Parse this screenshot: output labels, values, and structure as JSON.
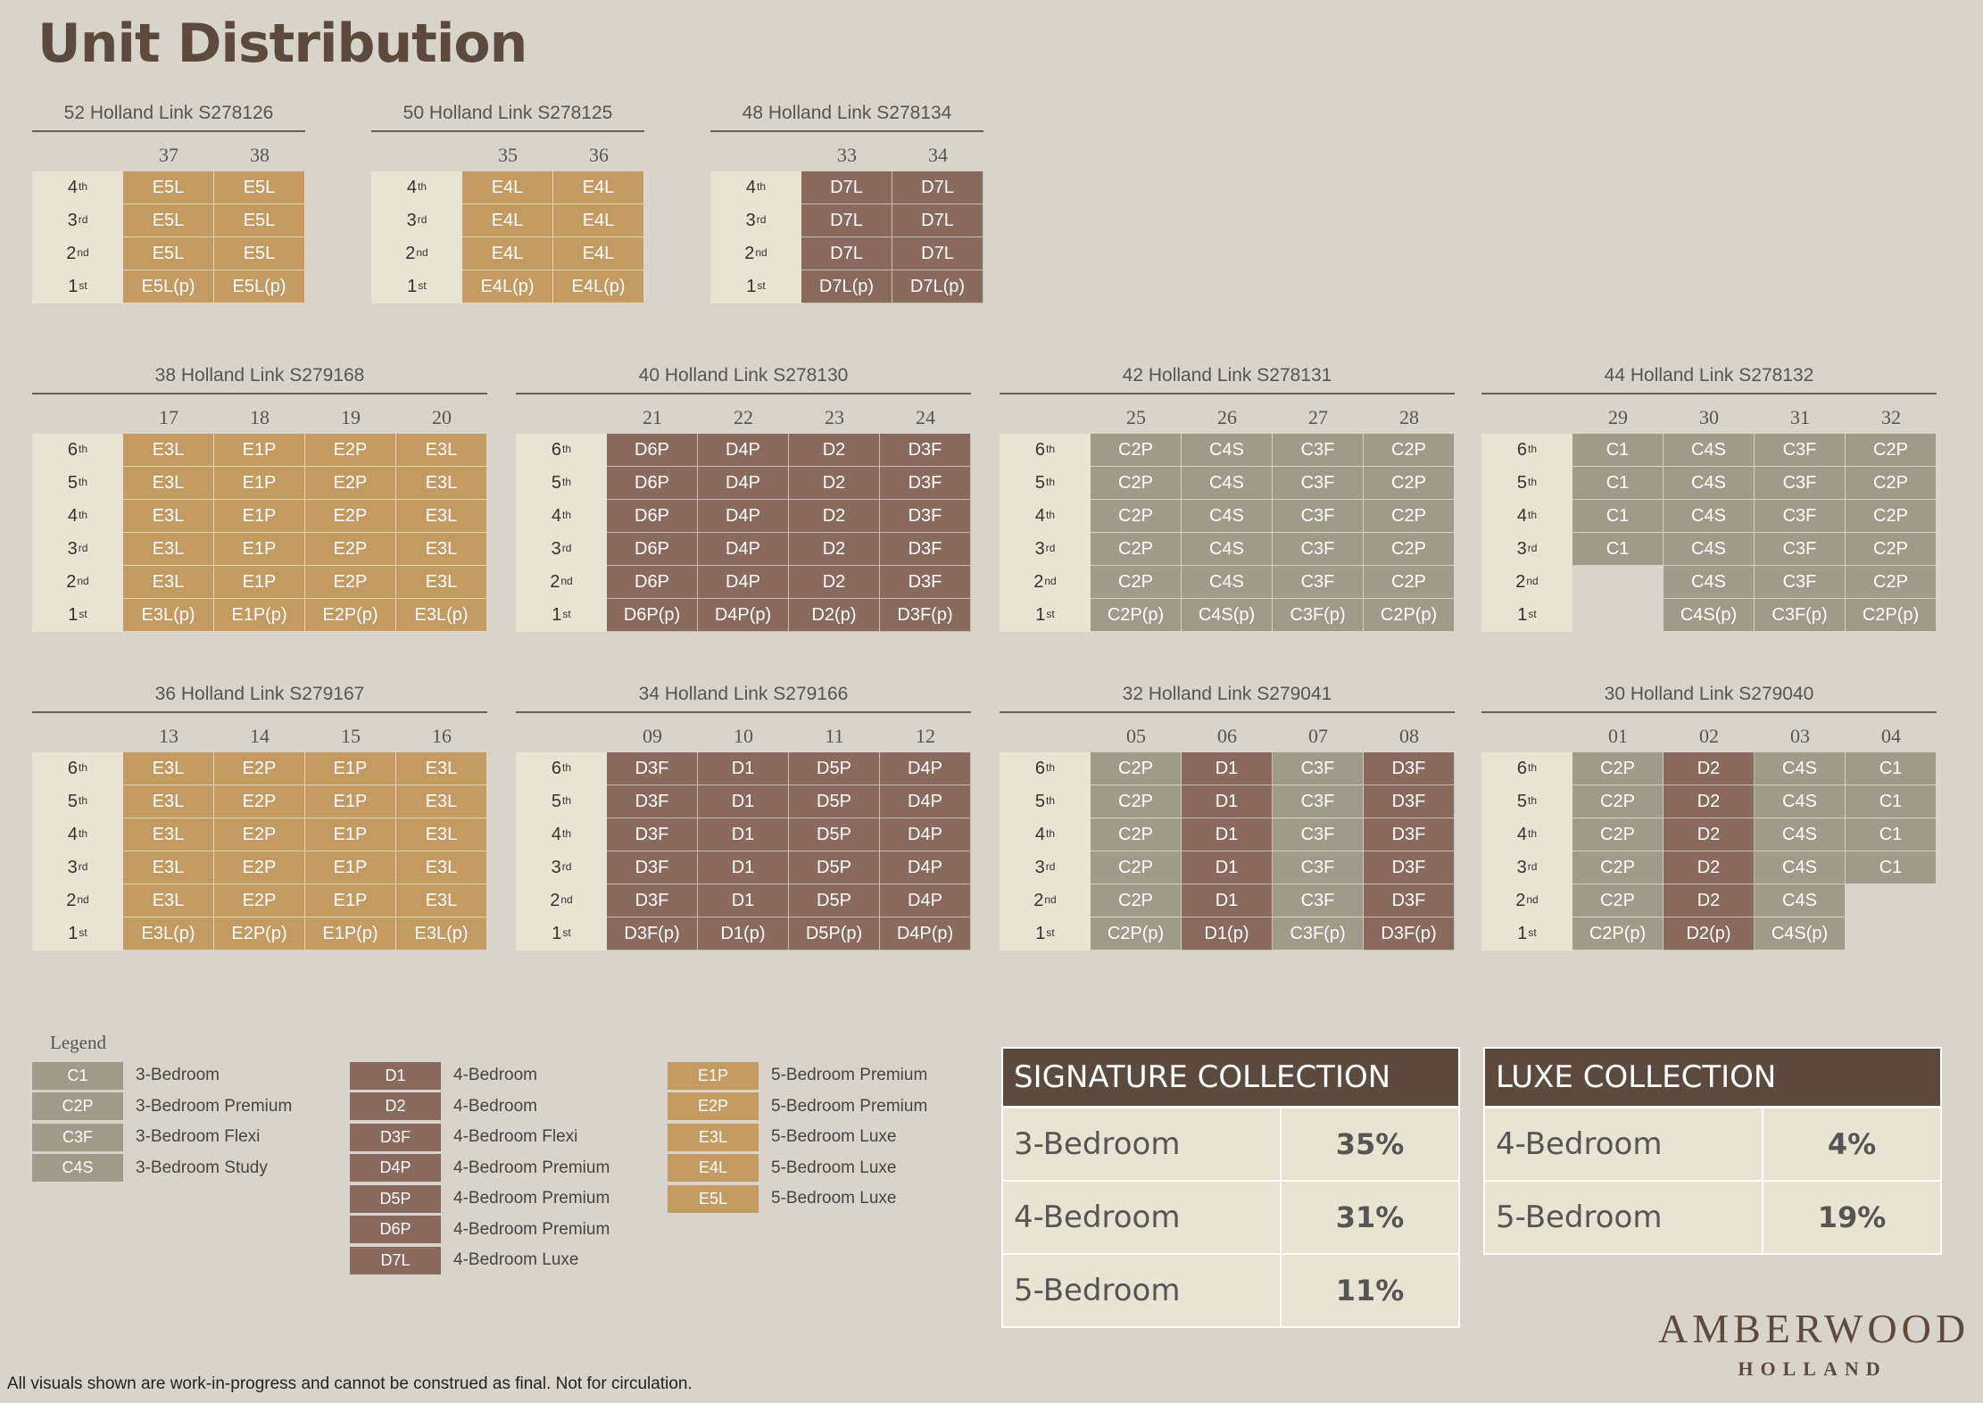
{
  "title": "Unit Distribution",
  "colors": {
    "C": "#a09a88",
    "D": "#8a6a5c",
    "E": "#c49a63"
  },
  "blocks": [
    {
      "id": "52",
      "title": "52 Holland Link S278126",
      "cols": [
        "37",
        "38"
      ],
      "rows": [
        {
          "floor": "4",
          "sup": "th",
          "units": [
            "E5L",
            "E5L"
          ]
        },
        {
          "floor": "3",
          "sup": "rd",
          "units": [
            "E5L",
            "E5L"
          ]
        },
        {
          "floor": "2",
          "sup": "nd",
          "units": [
            "E5L",
            "E5L"
          ]
        },
        {
          "floor": "1",
          "sup": "st",
          "units": [
            "E5L(p)",
            "E5L(p)"
          ]
        }
      ]
    },
    {
      "id": "50",
      "title": "50 Holland Link S278125",
      "cols": [
        "35",
        "36"
      ],
      "rows": [
        {
          "floor": "4",
          "sup": "th",
          "units": [
            "E4L",
            "E4L"
          ]
        },
        {
          "floor": "3",
          "sup": "rd",
          "units": [
            "E4L",
            "E4L"
          ]
        },
        {
          "floor": "2",
          "sup": "nd",
          "units": [
            "E4L",
            "E4L"
          ]
        },
        {
          "floor": "1",
          "sup": "st",
          "units": [
            "E4L(p)",
            "E4L(p)"
          ]
        }
      ]
    },
    {
      "id": "48",
      "title": "48 Holland Link S278134",
      "cols": [
        "33",
        "34"
      ],
      "rows": [
        {
          "floor": "4",
          "sup": "th",
          "units": [
            "D7L",
            "D7L"
          ]
        },
        {
          "floor": "3",
          "sup": "rd",
          "units": [
            "D7L",
            "D7L"
          ]
        },
        {
          "floor": "2",
          "sup": "nd",
          "units": [
            "D7L",
            "D7L"
          ]
        },
        {
          "floor": "1",
          "sup": "st",
          "units": [
            "D7L(p)",
            "D7L(p)"
          ]
        }
      ]
    },
    {
      "id": "38",
      "title": "38 Holland Link S279168",
      "cols": [
        "17",
        "18",
        "19",
        "20"
      ],
      "rows": [
        {
          "floor": "6",
          "sup": "th",
          "units": [
            "E3L",
            "E1P",
            "E2P",
            "E3L"
          ]
        },
        {
          "floor": "5",
          "sup": "th",
          "units": [
            "E3L",
            "E1P",
            "E2P",
            "E3L"
          ]
        },
        {
          "floor": "4",
          "sup": "th",
          "units": [
            "E3L",
            "E1P",
            "E2P",
            "E3L"
          ]
        },
        {
          "floor": "3",
          "sup": "rd",
          "units": [
            "E3L",
            "E1P",
            "E2P",
            "E3L"
          ]
        },
        {
          "floor": "2",
          "sup": "nd",
          "units": [
            "E3L",
            "E1P",
            "E2P",
            "E3L"
          ]
        },
        {
          "floor": "1",
          "sup": "st",
          "units": [
            "E3L(p)",
            "E1P(p)",
            "E2P(p)",
            "E3L(p)"
          ]
        }
      ]
    },
    {
      "id": "40",
      "title": "40 Holland Link S278130",
      "cols": [
        "21",
        "22",
        "23",
        "24"
      ],
      "rows": [
        {
          "floor": "6",
          "sup": "th",
          "units": [
            "D6P",
            "D4P",
            "D2",
            "D3F"
          ]
        },
        {
          "floor": "5",
          "sup": "th",
          "units": [
            "D6P",
            "D4P",
            "D2",
            "D3F"
          ]
        },
        {
          "floor": "4",
          "sup": "th",
          "units": [
            "D6P",
            "D4P",
            "D2",
            "D3F"
          ]
        },
        {
          "floor": "3",
          "sup": "rd",
          "units": [
            "D6P",
            "D4P",
            "D2",
            "D3F"
          ]
        },
        {
          "floor": "2",
          "sup": "nd",
          "units": [
            "D6P",
            "D4P",
            "D2",
            "D3F"
          ]
        },
        {
          "floor": "1",
          "sup": "st",
          "units": [
            "D6P(p)",
            "D4P(p)",
            "D2(p)",
            "D3F(p)"
          ]
        }
      ]
    },
    {
      "id": "42",
      "title": "42 Holland Link S278131",
      "cols": [
        "25",
        "26",
        "27",
        "28"
      ],
      "rows": [
        {
          "floor": "6",
          "sup": "th",
          "units": [
            "C2P",
            "C4S",
            "C3F",
            "C2P"
          ]
        },
        {
          "floor": "5",
          "sup": "th",
          "units": [
            "C2P",
            "C4S",
            "C3F",
            "C2P"
          ]
        },
        {
          "floor": "4",
          "sup": "th",
          "units": [
            "C2P",
            "C4S",
            "C3F",
            "C2P"
          ]
        },
        {
          "floor": "3",
          "sup": "rd",
          "units": [
            "C2P",
            "C4S",
            "C3F",
            "C2P"
          ]
        },
        {
          "floor": "2",
          "sup": "nd",
          "units": [
            "C2P",
            "C4S",
            "C3F",
            "C2P"
          ]
        },
        {
          "floor": "1",
          "sup": "st",
          "units": [
            "C2P(p)",
            "C4S(p)",
            "C3F(p)",
            "C2P(p)"
          ]
        }
      ]
    },
    {
      "id": "44",
      "title": "44 Holland Link S278132",
      "cols": [
        "29",
        "30",
        "31",
        "32"
      ],
      "rows": [
        {
          "floor": "6",
          "sup": "th",
          "units": [
            "C1",
            "C4S",
            "C3F",
            "C2P"
          ]
        },
        {
          "floor": "5",
          "sup": "th",
          "units": [
            "C1",
            "C4S",
            "C3F",
            "C2P"
          ]
        },
        {
          "floor": "4",
          "sup": "th",
          "units": [
            "C1",
            "C4S",
            "C3F",
            "C2P"
          ]
        },
        {
          "floor": "3",
          "sup": "rd",
          "units": [
            "C1",
            "C4S",
            "C3F",
            "C2P"
          ]
        },
        {
          "floor": "2",
          "sup": "nd",
          "units": [
            "",
            "C4S",
            "C3F",
            "C2P"
          ]
        },
        {
          "floor": "1",
          "sup": "st",
          "units": [
            "",
            "C4S(p)",
            "C3F(p)",
            "C2P(p)"
          ]
        }
      ]
    },
    {
      "id": "36",
      "title": "36 Holland Link S279167",
      "cols": [
        "13",
        "14",
        "15",
        "16"
      ],
      "rows": [
        {
          "floor": "6",
          "sup": "th",
          "units": [
            "E3L",
            "E2P",
            "E1P",
            "E3L"
          ]
        },
        {
          "floor": "5",
          "sup": "th",
          "units": [
            "E3L",
            "E2P",
            "E1P",
            "E3L"
          ]
        },
        {
          "floor": "4",
          "sup": "th",
          "units": [
            "E3L",
            "E2P",
            "E1P",
            "E3L"
          ]
        },
        {
          "floor": "3",
          "sup": "rd",
          "units": [
            "E3L",
            "E2P",
            "E1P",
            "E3L"
          ]
        },
        {
          "floor": "2",
          "sup": "nd",
          "units": [
            "E3L",
            "E2P",
            "E1P",
            "E3L"
          ]
        },
        {
          "floor": "1",
          "sup": "st",
          "units": [
            "E3L(p)",
            "E2P(p)",
            "E1P(p)",
            "E3L(p)"
          ]
        }
      ]
    },
    {
      "id": "34",
      "title": "34 Holland Link S279166",
      "cols": [
        "09",
        "10",
        "11",
        "12"
      ],
      "rows": [
        {
          "floor": "6",
          "sup": "th",
          "units": [
            "D3F",
            "D1",
            "D5P",
            "D4P"
          ]
        },
        {
          "floor": "5",
          "sup": "th",
          "units": [
            "D3F",
            "D1",
            "D5P",
            "D4P"
          ]
        },
        {
          "floor": "4",
          "sup": "th",
          "units": [
            "D3F",
            "D1",
            "D5P",
            "D4P"
          ]
        },
        {
          "floor": "3",
          "sup": "rd",
          "units": [
            "D3F",
            "D1",
            "D5P",
            "D4P"
          ]
        },
        {
          "floor": "2",
          "sup": "nd",
          "units": [
            "D3F",
            "D1",
            "D5P",
            "D4P"
          ]
        },
        {
          "floor": "1",
          "sup": "st",
          "units": [
            "D3F(p)",
            "D1(p)",
            "D5P(p)",
            "D4P(p)"
          ]
        }
      ]
    },
    {
      "id": "32",
      "title": "32 Holland Link S279041",
      "cols": [
        "05",
        "06",
        "07",
        "08"
      ],
      "rows": [
        {
          "floor": "6",
          "sup": "th",
          "units": [
            "C2P",
            "D1",
            "C3F",
            "D3F"
          ]
        },
        {
          "floor": "5",
          "sup": "th",
          "units": [
            "C2P",
            "D1",
            "C3F",
            "D3F"
          ]
        },
        {
          "floor": "4",
          "sup": "th",
          "units": [
            "C2P",
            "D1",
            "C3F",
            "D3F"
          ]
        },
        {
          "floor": "3",
          "sup": "rd",
          "units": [
            "C2P",
            "D1",
            "C3F",
            "D3F"
          ]
        },
        {
          "floor": "2",
          "sup": "nd",
          "units": [
            "C2P",
            "D1",
            "C3F",
            "D3F"
          ]
        },
        {
          "floor": "1",
          "sup": "st",
          "units": [
            "C2P(p)",
            "D1(p)",
            "C3F(p)",
            "D3F(p)"
          ]
        }
      ]
    },
    {
      "id": "30",
      "title": "30 Holland Link S279040",
      "cols": [
        "01",
        "02",
        "03",
        "04"
      ],
      "rows": [
        {
          "floor": "6",
          "sup": "th",
          "units": [
            "C2P",
            "D2",
            "C4S",
            "C1"
          ]
        },
        {
          "floor": "5",
          "sup": "th",
          "units": [
            "C2P",
            "D2",
            "C4S",
            "C1"
          ]
        },
        {
          "floor": "4",
          "sup": "th",
          "units": [
            "C2P",
            "D2",
            "C4S",
            "C1"
          ]
        },
        {
          "floor": "3",
          "sup": "rd",
          "units": [
            "C2P",
            "D2",
            "C4S",
            "C1"
          ]
        },
        {
          "floor": "2",
          "sup": "nd",
          "units": [
            "C2P",
            "D2",
            "C4S",
            ""
          ]
        },
        {
          "floor": "1",
          "sup": "st",
          "units": [
            "C2P(p)",
            "D2(p)",
            "C4S(p)",
            ""
          ]
        }
      ]
    }
  ],
  "legend": {
    "title": "Legend",
    "columns": [
      [
        {
          "code": "C1",
          "label": "3-Bedroom"
        },
        {
          "code": "C2P",
          "label": "3-Bedroom Premium"
        },
        {
          "code": "C3F",
          "label": "3-Bedroom Flexi"
        },
        {
          "code": "C4S",
          "label": "3-Bedroom Study"
        }
      ],
      [
        {
          "code": "D1",
          "label": "4-Bedroom"
        },
        {
          "code": "D2",
          "label": "4-Bedroom"
        },
        {
          "code": "D3F",
          "label": "4-Bedroom Flexi"
        },
        {
          "code": "D4P",
          "label": "4-Bedroom Premium"
        },
        {
          "code": "D5P",
          "label": "4-Bedroom Premium"
        },
        {
          "code": "D6P",
          "label": "4-Bedroom Premium"
        },
        {
          "code": "D7L",
          "label": "4-Bedroom Luxe"
        }
      ],
      [
        {
          "code": "E1P",
          "label": "5-Bedroom Premium"
        },
        {
          "code": "E2P",
          "label": "5-Bedroom Premium"
        },
        {
          "code": "E3L",
          "label": "5-Bedroom Luxe"
        },
        {
          "code": "E4L",
          "label": "5-Bedroom Luxe"
        },
        {
          "code": "E5L",
          "label": "5-Bedroom Luxe"
        }
      ]
    ]
  },
  "signature": {
    "title": "SIGNATURE COLLECTION",
    "rows": [
      {
        "label": "3-Bedroom",
        "value": "35%"
      },
      {
        "label": "4-Bedroom",
        "value": "31%"
      },
      {
        "label": "5-Bedroom",
        "value": "11%"
      }
    ]
  },
  "luxe": {
    "title": "LUXE COLLECTION",
    "rows": [
      {
        "label": "4-Bedroom",
        "value": "4%"
      },
      {
        "label": "5-Bedroom",
        "value": "19%"
      }
    ]
  },
  "brand": {
    "name": "AMBERWOOD",
    "sub": "HOLLAND"
  },
  "disclaimer": "All visuals shown are work-in-progress and cannot be construed as final.  Not for circulation."
}
